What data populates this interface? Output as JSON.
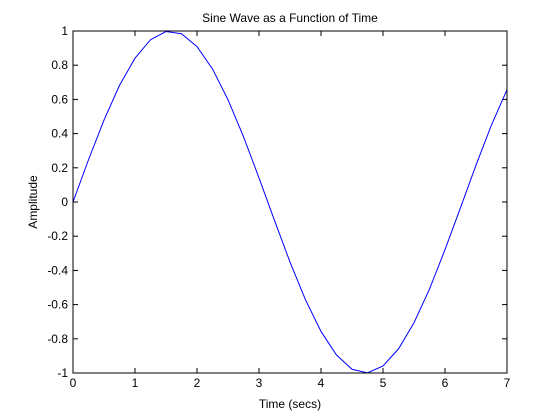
{
  "chart_data": {
    "type": "line",
    "title": "Sine Wave as a Function of Time",
    "xlabel": "Time (secs)",
    "ylabel": "Amplitude",
    "xlim": [
      0,
      7
    ],
    "ylim": [
      -1,
      1
    ],
    "xticks": [
      0,
      1,
      2,
      3,
      4,
      5,
      6,
      7
    ],
    "yticks": [
      -1,
      -0.8,
      -0.6,
      -0.4,
      -0.2,
      0,
      0.2,
      0.4,
      0.6,
      0.8,
      1
    ],
    "grid": false,
    "series": [
      {
        "color": "#0000ff",
        "x": [
          0,
          0.25,
          0.5,
          0.75,
          1,
          1.25,
          1.5,
          1.75,
          2,
          2.25,
          2.5,
          2.75,
          3,
          3.25,
          3.5,
          3.75,
          4,
          4.25,
          4.5,
          4.75,
          5,
          5.25,
          5.5,
          5.75,
          6,
          6.25,
          6.5,
          6.75,
          7
        ],
        "y": [
          0,
          0.247,
          0.479,
          0.682,
          0.841,
          0.949,
          0.997,
          0.984,
          0.909,
          0.778,
          0.598,
          0.382,
          0.141,
          -0.108,
          -0.351,
          -0.572,
          -0.757,
          -0.895,
          -0.978,
          -0.999,
          -0.959,
          -0.859,
          -0.706,
          -0.509,
          -0.279,
          -0.033,
          0.215,
          0.451,
          0.657
        ]
      }
    ]
  }
}
